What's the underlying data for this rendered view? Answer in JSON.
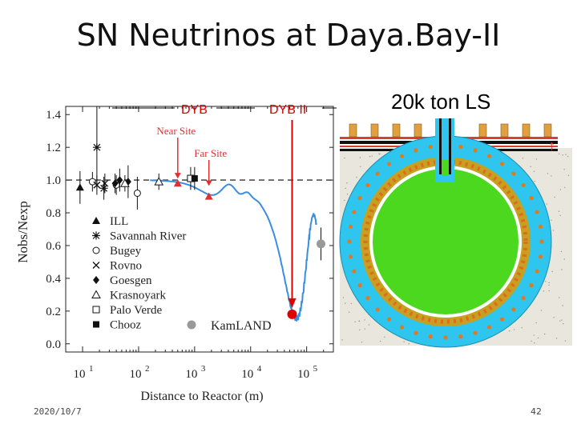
{
  "slide": {
    "title": "SN Neutrinos at Daya.Bay-II",
    "date": "2020/10/7",
    "page": "42"
  },
  "detector": {
    "label": "20k ton LS",
    "colors": {
      "ls": "#4bd81e",
      "buffer": "#2ec6ee",
      "steel": "#c8a020",
      "pmt": "#e07a20",
      "rock": "#e9e6de"
    }
  },
  "chart_data": {
    "type": "scatter",
    "xlabel": "Distance to Reactor (m)",
    "ylabel": "Nobs/Nexp",
    "xscale": "log",
    "xlim": [
      5,
      300000
    ],
    "ylim": [
      -0.05,
      1.45
    ],
    "x_ticks": [
      {
        "base": "10",
        "exp": "1",
        "value": 10
      },
      {
        "base": "10",
        "exp": "2",
        "value": 100
      },
      {
        "base": "10",
        "exp": "3",
        "value": 1000
      },
      {
        "base": "10",
        "exp": "4",
        "value": 10000
      },
      {
        "base": "10",
        "exp": "5",
        "value": 100000
      }
    ],
    "y_ticks": [
      "0.0",
      "0.2",
      "0.4",
      "0.6",
      "0.8",
      "1.0",
      "1.2",
      "1.4"
    ],
    "legend": [
      {
        "label": "ILL",
        "marker": "filled-triangle"
      },
      {
        "label": "Savannah River",
        "marker": "asterisk"
      },
      {
        "label": "Bugey",
        "marker": "open-circle"
      },
      {
        "label": "Rovno",
        "marker": "cross"
      },
      {
        "label": "Goesgen",
        "marker": "filled-diamond"
      },
      {
        "label": "Krasnoyark",
        "marker": "open-triangle"
      },
      {
        "label": "Palo Verde",
        "marker": "open-square"
      },
      {
        "label": "Chooz",
        "marker": "filled-square"
      },
      {
        "label": "KamLAND",
        "marker": "gray-circle"
      }
    ],
    "series": [
      {
        "name": "ILL",
        "marker": "filled-triangle",
        "points": [
          {
            "x": 9,
            "y": 0.955,
            "err": 0.1
          }
        ]
      },
      {
        "name": "Savannah River",
        "marker": "asterisk",
        "points": [
          {
            "x": 18,
            "y": 1.2,
            "err": 0.25
          },
          {
            "x": 24,
            "y": 0.95,
            "err": 0.07
          }
        ]
      },
      {
        "name": "Bugey",
        "marker": "open-circle",
        "points": [
          {
            "x": 15,
            "y": 0.99,
            "err": 0.06
          },
          {
            "x": 40,
            "y": 0.97,
            "err": 0.06
          },
          {
            "x": 95,
            "y": 0.92,
            "err": 0.1
          }
        ]
      },
      {
        "name": "Rovno",
        "marker": "cross",
        "points": [
          {
            "x": 18,
            "y": 0.97,
            "err": 0.06
          },
          {
            "x": 25,
            "y": 0.98,
            "err": 0.06
          }
        ]
      },
      {
        "name": "Goesgen",
        "marker": "filled-diamond",
        "points": [
          {
            "x": 38,
            "y": 0.98,
            "err": 0.06
          },
          {
            "x": 46,
            "y": 1.0,
            "err": 0.07
          },
          {
            "x": 65,
            "y": 0.99,
            "err": 0.1
          }
        ]
      },
      {
        "name": "Krasnoyark",
        "marker": "open-triangle",
        "points": [
          {
            "x": 57,
            "y": 0.98,
            "err": 0.05
          },
          {
            "x": 230,
            "y": 0.99,
            "err": 0.05
          }
        ]
      },
      {
        "name": "Palo Verde",
        "marker": "open-square",
        "points": [
          {
            "x": 850,
            "y": 1.01,
            "err": 0.07
          }
        ]
      },
      {
        "name": "Chooz",
        "marker": "filled-square",
        "points": [
          {
            "x": 1000,
            "y": 1.01,
            "err": 0.07
          }
        ]
      },
      {
        "name": "Near Site",
        "marker": "red-triangle",
        "points": [
          {
            "x": 500,
            "y": 0.98
          }
        ]
      },
      {
        "name": "Far Site",
        "marker": "red-triangle",
        "points": [
          {
            "x": 1800,
            "y": 0.9
          }
        ]
      },
      {
        "name": "KamLAND",
        "marker": "gray-circle",
        "points": [
          {
            "x": 180000,
            "y": 0.61,
            "err": 0.1
          }
        ]
      },
      {
        "name": "Daya Bay II",
        "marker": "red-circle",
        "points": [
          {
            "x": 55000,
            "y": 0.18
          }
        ]
      }
    ],
    "oscillation_curve": {
      "color": "#3a8de0",
      "theta13_term": 0.095,
      "theta12_term": 0.85,
      "dm31": 0.00243,
      "dm21": 7.6e-05,
      "mean_energy_mev": 4.2,
      "energy_spread": 0.33
    },
    "annotations": {
      "near_site": {
        "label": "Near Site",
        "x": 500,
        "color": "#e03030"
      },
      "far_site": {
        "label": "Far Site",
        "x": 1800,
        "color": "#e03030"
      },
      "kamland": {
        "label": "KamLAND",
        "x": 180000,
        "y": 0.61
      },
      "dyb": {
        "label": "DYB"
      },
      "dyb2": {
        "label": "DYB II",
        "x": 55000,
        "color": "#e00000"
      }
    }
  }
}
